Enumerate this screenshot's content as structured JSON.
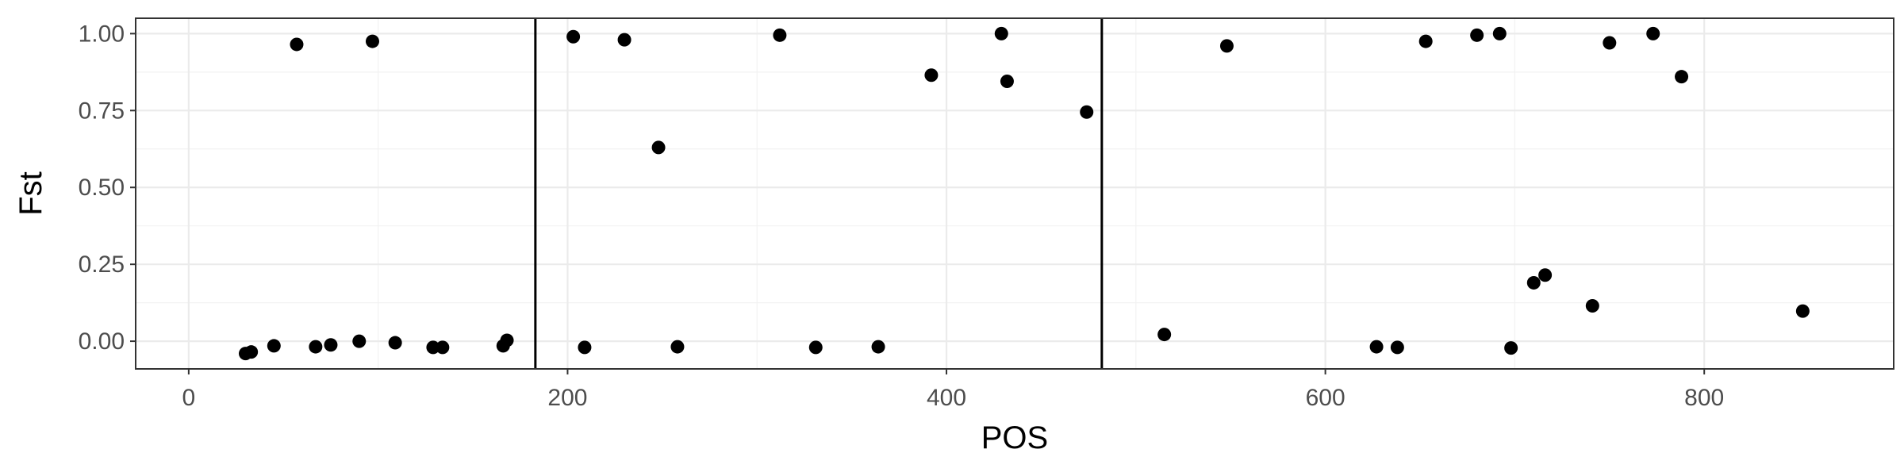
{
  "chart_data": {
    "type": "scatter",
    "xlabel": "POS",
    "ylabel": "Fst",
    "xlim": [
      -28,
      900
    ],
    "ylim": [
      -0.09,
      1.05
    ],
    "grid": true,
    "x_ticks": [
      0,
      200,
      400,
      600,
      800
    ],
    "x_tick_labels": [
      "0",
      "200",
      "400",
      "600",
      "800"
    ],
    "y_ticks": [
      0,
      0.25,
      0.5,
      0.75,
      1.0
    ],
    "y_tick_labels": [
      "0.00",
      "0.25",
      "0.50",
      "0.75",
      "1.00"
    ],
    "vlines": [
      183,
      482
    ],
    "point_color": "#000000",
    "points": [
      {
        "x": 30,
        "y": -0.04
      },
      {
        "x": 33,
        "y": -0.035
      },
      {
        "x": 45,
        "y": -0.015
      },
      {
        "x": 57,
        "y": 0.965
      },
      {
        "x": 67,
        "y": -0.018
      },
      {
        "x": 75,
        "y": -0.012
      },
      {
        "x": 90,
        "y": 0.0
      },
      {
        "x": 97,
        "y": 0.975
      },
      {
        "x": 109,
        "y": -0.005
      },
      {
        "x": 129,
        "y": -0.02
      },
      {
        "x": 134,
        "y": -0.02
      },
      {
        "x": 166,
        "y": -0.015
      },
      {
        "x": 168,
        "y": 0.003
      },
      {
        "x": 203,
        "y": 0.99
      },
      {
        "x": 209,
        "y": -0.02
      },
      {
        "x": 230,
        "y": 0.98
      },
      {
        "x": 248,
        "y": 0.63
      },
      {
        "x": 258,
        "y": -0.018
      },
      {
        "x": 312,
        "y": 0.995
      },
      {
        "x": 331,
        "y": -0.02
      },
      {
        "x": 364,
        "y": -0.018
      },
      {
        "x": 392,
        "y": 0.865
      },
      {
        "x": 429,
        "y": 1.0
      },
      {
        "x": 432,
        "y": 0.845
      },
      {
        "x": 474,
        "y": 0.745
      },
      {
        "x": 515,
        "y": 0.022
      },
      {
        "x": 548,
        "y": 0.96
      },
      {
        "x": 627,
        "y": -0.018
      },
      {
        "x": 638,
        "y": -0.02
      },
      {
        "x": 653,
        "y": 0.975
      },
      {
        "x": 680,
        "y": 0.995
      },
      {
        "x": 692,
        "y": 1.0
      },
      {
        "x": 698,
        "y": -0.022
      },
      {
        "x": 710,
        "y": 0.19
      },
      {
        "x": 716,
        "y": 0.215
      },
      {
        "x": 741,
        "y": 0.115
      },
      {
        "x": 750,
        "y": 0.97
      },
      {
        "x": 773,
        "y": 1.0
      },
      {
        "x": 788,
        "y": 0.86
      },
      {
        "x": 852,
        "y": 0.098
      }
    ]
  }
}
